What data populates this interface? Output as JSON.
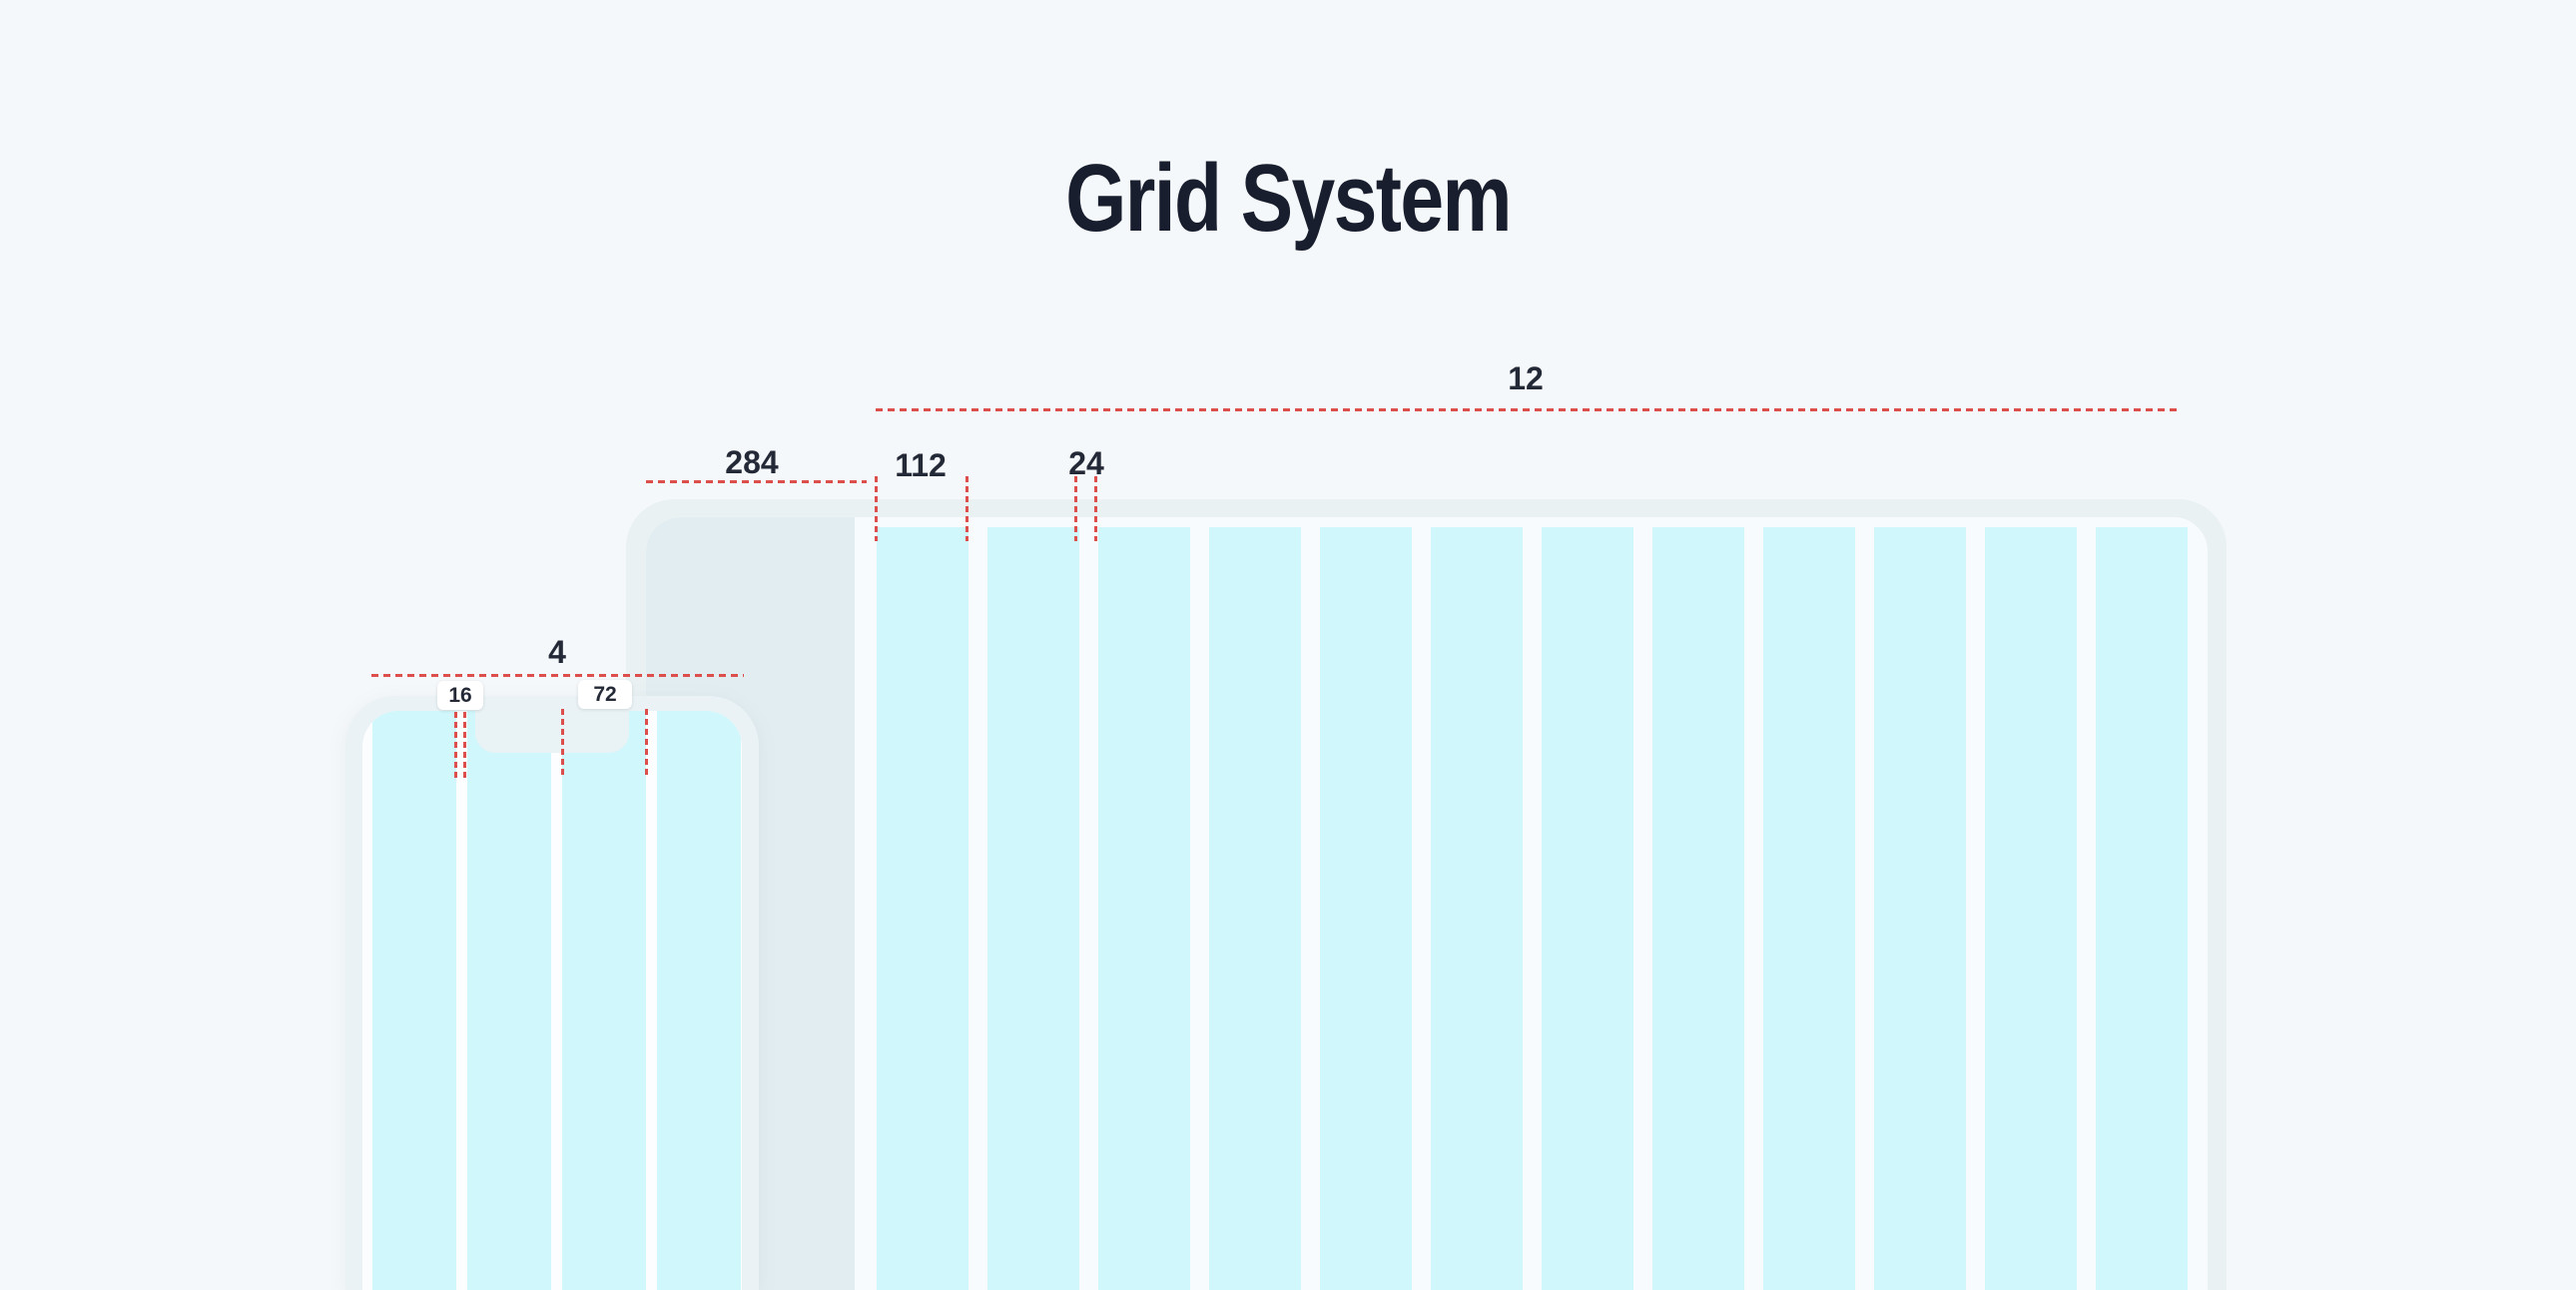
{
  "title": {
    "text": "Grid System"
  },
  "annotations": {
    "desktop": {
      "column_count_label": "12",
      "margin_label": "284",
      "column_width_label": "112",
      "gutter_label": "24"
    },
    "mobile": {
      "column_count_label": "4",
      "gutter_label": "16",
      "column_width_label": "72"
    }
  },
  "desktop_grid": {
    "column_count": 12
  },
  "mobile_grid": {
    "column_count": 4
  },
  "colors": {
    "page_bg": "#f5f8fa",
    "title_text": "#191e2e",
    "label_text": "#242938",
    "dimension_red": "#dc4f4c",
    "column_fill": "#d0f7fb",
    "laptop_frame": "#e9f1f3",
    "laptop_screen": "#f8fbfd",
    "margin_fill": "#e2edf1",
    "phone_frame": "#eaf2f5",
    "phone_screen": "#fbfdfe",
    "notch_fill": "#e9f3f6",
    "chip_bg": "#ffffff"
  }
}
